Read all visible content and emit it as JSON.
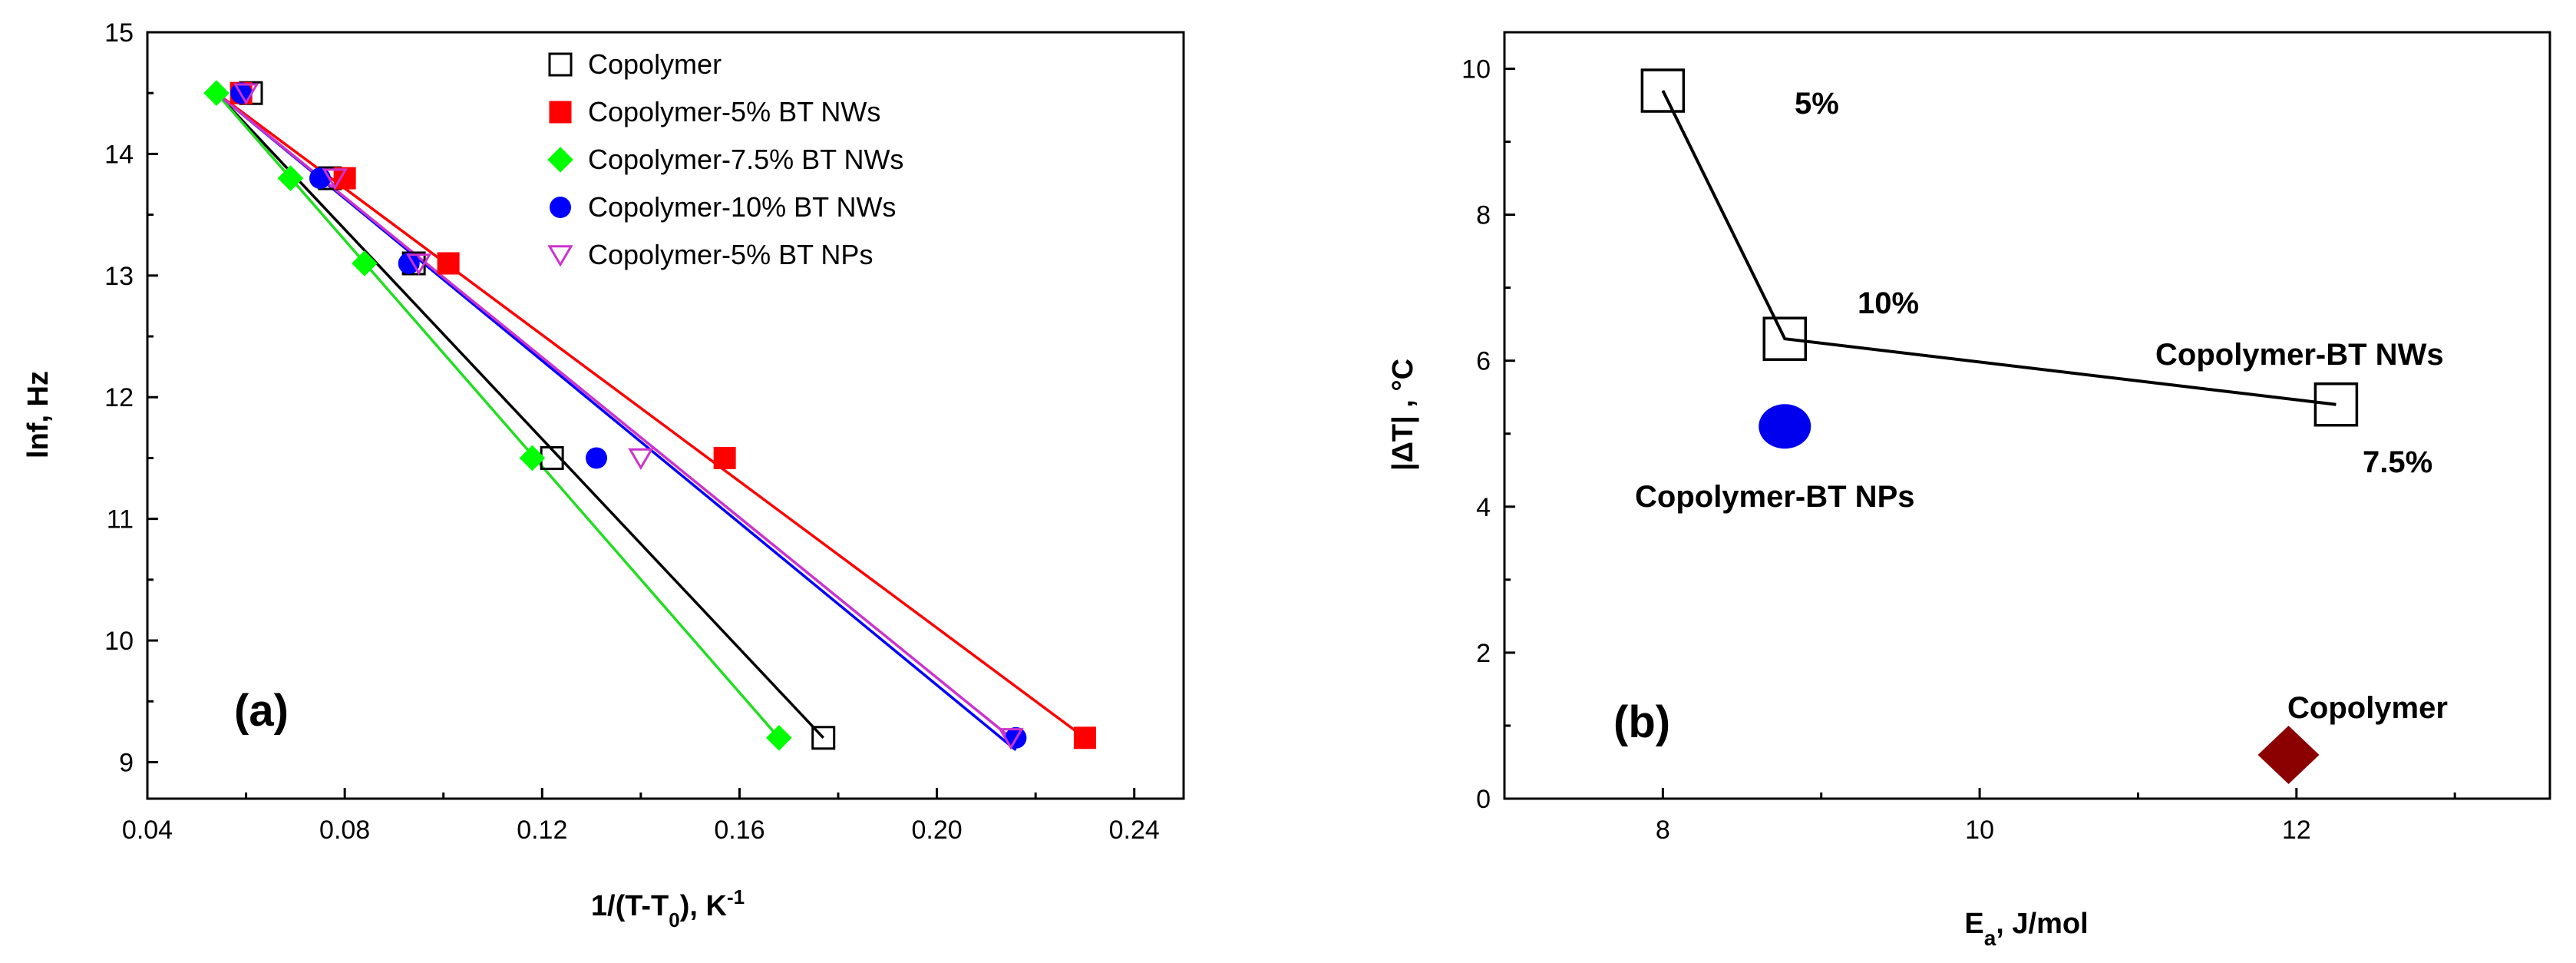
{
  "chart_data": [
    {
      "type": "scatter",
      "panel_label": "(a)",
      "xlabel": "1/(T-T",
      "xlabel_sub": "0",
      "xlabel_unit": "), K",
      "xlabel_sup": "-1",
      "ylabel": "lnf, Hz",
      "xlim": [
        0.04,
        0.25
      ],
      "ylim": [
        8.7,
        15
      ],
      "xticks": [
        0.04,
        0.08,
        0.12,
        0.16,
        0.2,
        0.24
      ],
      "xtick_labels": [
        "0.04",
        "0.08",
        "0.12",
        "0.16",
        "0.20",
        "0.24"
      ],
      "yticks": [
        9,
        10,
        11,
        12,
        13,
        14,
        15
      ],
      "ytick_labels": [
        "9",
        "10",
        "11",
        "12",
        "13",
        "14",
        "15"
      ],
      "legend_position": "top-right",
      "series": [
        {
          "name": "Copolymer",
          "marker": "open-square",
          "color": "#000000",
          "x": [
            0.061,
            0.077,
            0.094,
            0.122,
            0.177
          ],
          "y": [
            14.5,
            13.8,
            13.1,
            11.5,
            9.2
          ],
          "fit": [
            [
              0.054,
              14.5
            ],
            [
              0.177,
              9.2
            ]
          ]
        },
        {
          "name": "Copolymer-5% BT NWs",
          "marker": "filled-square",
          "color": "#ff0000",
          "x": [
            0.059,
            0.08,
            0.101,
            0.157,
            0.23
          ],
          "y": [
            14.5,
            13.8,
            13.1,
            11.5,
            9.2
          ],
          "fit": [
            [
              0.054,
              14.5
            ],
            [
              0.23,
              9.2
            ]
          ]
        },
        {
          "name": "Copolymer-7.5% BT NWs",
          "marker": "filled-diamond",
          "color": "#00ff00",
          "x": [
            0.054,
            0.069,
            0.084,
            0.118,
            0.168
          ],
          "y": [
            14.5,
            13.8,
            13.1,
            11.5,
            9.2
          ],
          "fit": [
            [
              0.054,
              14.5
            ],
            [
              0.168,
              9.2
            ]
          ]
        },
        {
          "name": "Copolymer-10% BT NWs",
          "marker": "filled-circle",
          "color": "#0000ff",
          "x": [
            0.059,
            0.075,
            0.093,
            0.131,
            0.216
          ],
          "y": [
            14.5,
            13.8,
            13.1,
            11.5,
            9.2
          ],
          "fit": [
            [
              0.054,
              14.5
            ],
            [
              0.216,
              9.1
            ]
          ]
        },
        {
          "name": "Copolymer-5% BT NPs",
          "marker": "open-triangle-down",
          "color": "#cc33cc",
          "x": [
            0.06,
            0.078,
            0.095,
            0.14,
            0.215
          ],
          "y": [
            14.5,
            13.8,
            13.1,
            11.5,
            9.2
          ],
          "fit": [
            [
              0.054,
              14.5
            ],
            [
              0.215,
              9.2
            ]
          ]
        }
      ]
    },
    {
      "type": "scatter",
      "panel_label": "(b)",
      "xlabel": "E",
      "xlabel_sub": "a",
      "xlabel_unit": ", J/mol",
      "ylabel": "|ΔT| , °C",
      "xlim": [
        7,
        13.6
      ],
      "ylim": [
        0,
        10.5
      ],
      "xticks": [
        8,
        10,
        12
      ],
      "xtick_labels": [
        "8",
        "10",
        "12"
      ],
      "yticks": [
        0,
        2,
        4,
        6,
        8,
        10
      ],
      "ytick_labels": [
        "0",
        "2",
        "4",
        "6",
        "8",
        "10"
      ],
      "series": [
        {
          "name": "Copolymer-BT NWs",
          "marker": "open-square",
          "color": "#000000",
          "connected": true,
          "points": [
            {
              "x": 8.0,
              "y": 9.7,
              "label": "5%"
            },
            {
              "x": 8.77,
              "y": 6.3,
              "label": "10%"
            },
            {
              "x": 12.25,
              "y": 5.4,
              "label": "7.5%"
            }
          ]
        },
        {
          "name": "Copolymer-BT NPs",
          "marker": "filled-circle",
          "color": "#0000ee",
          "points": [
            {
              "x": 8.77,
              "y": 5.1
            }
          ]
        },
        {
          "name": "Copolymer",
          "marker": "filled-diamond",
          "color": "#8b0000",
          "points": [
            {
              "x": 11.95,
              "y": 0.6
            }
          ]
        }
      ],
      "annotations": {
        "nws_label": "Copolymer-BT NWs",
        "nps_label": "Copolymer-BT NPs",
        "copolymer_label": "Copolymer",
        "pt_5": "5%",
        "pt_10": "10%",
        "pt_75": "7.5%"
      }
    }
  ]
}
